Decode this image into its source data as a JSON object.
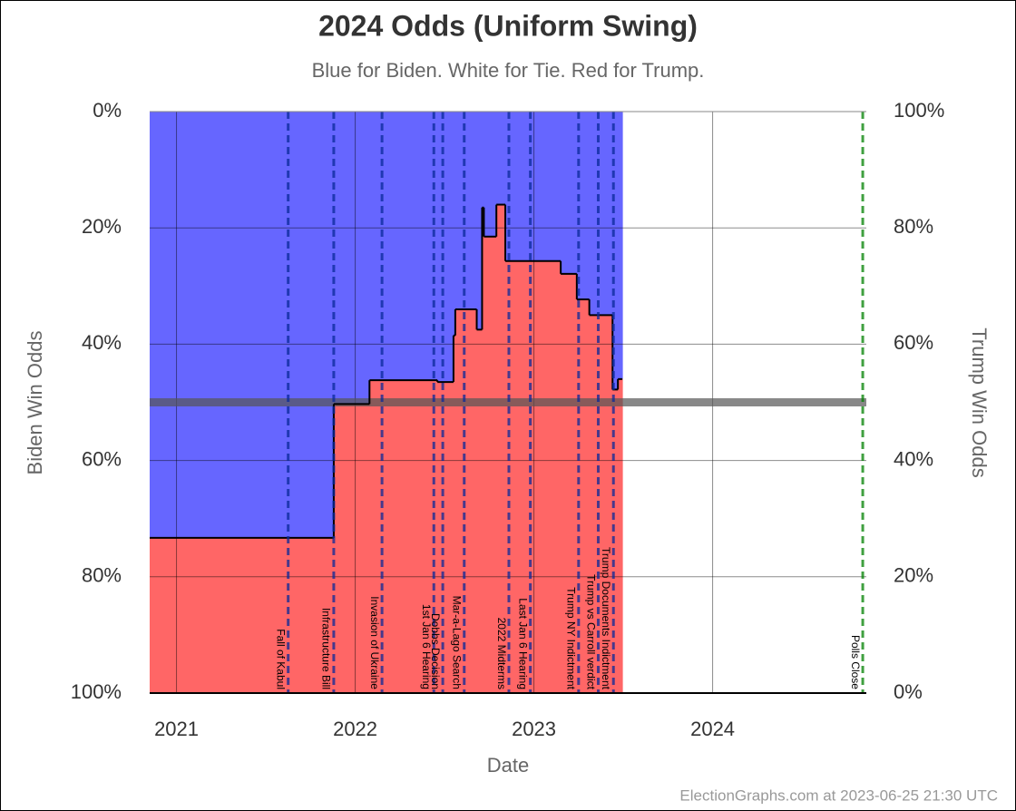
{
  "chart_data": {
    "type": "step-area",
    "title": "2024 Odds (Uniform Swing)",
    "subtitle": "Blue for Biden. White for Tie. Red for Trump.",
    "x_label": "Date",
    "y_label": "Biden Win Odds",
    "y2_label": "Trump Win Odds",
    "footer": "ElectionGraphs.com at 2023-06-25 21:30 UTC",
    "x": [
      2020.85,
      2021.88,
      2022.08,
      2022.46,
      2022.55,
      2022.56,
      2022.68,
      2022.71,
      2022.72,
      2022.79,
      2022.84,
      2023.15,
      2023.24,
      2023.31,
      2023.44,
      2023.47,
      2023.49
    ],
    "values": [
      73.3,
      50.3,
      46.2,
      46.5,
      38.5,
      34,
      37.5,
      16.5,
      21.5,
      16,
      25.7,
      27.9,
      32.3,
      35,
      47.8,
      46,
      46
    ],
    "above_color": "#6666ff",
    "below_color": "#ff6666",
    "line_color": "#000000",
    "reference_line": 50,
    "xlim": [
      2020.85,
      2024.86
    ],
    "xticks": [
      2021,
      2022,
      2023,
      2024
    ],
    "ylim": [
      100,
      0
    ],
    "yticks": [
      {
        "value": 0,
        "label": "0%"
      },
      {
        "value": 20,
        "label": "20%"
      },
      {
        "value": 40,
        "label": "40%"
      },
      {
        "value": 60,
        "label": "60%"
      },
      {
        "value": 80,
        "label": "80%"
      },
      {
        "value": 100,
        "label": "100%"
      }
    ],
    "y2lim": [
      0,
      100
    ],
    "y2ticks": [
      {
        "value": 100,
        "label": "100%"
      },
      {
        "value": 80,
        "label": "80%"
      },
      {
        "value": 60,
        "label": "60%"
      },
      {
        "value": 40,
        "label": "40%"
      },
      {
        "value": 20,
        "label": "20%"
      },
      {
        "value": 0,
        "label": "0%"
      }
    ],
    "grid": true,
    "events": [
      {
        "label": "Fall of Kabul",
        "x": 2021.625,
        "color": "#0a2a9a"
      },
      {
        "label": "Infrastructure Bill",
        "x": 2021.88,
        "color": "#0a2a9a"
      },
      {
        "label": "Invasion of Ukraine",
        "x": 2022.15,
        "color": "#0a2a9a"
      },
      {
        "label": "1st Jan 6 Hearing",
        "x": 2022.44,
        "color": "#0a2a9a"
      },
      {
        "label": "Dobbs Decision",
        "x": 2022.49,
        "color": "#0a2a9a"
      },
      {
        "label": "Mar-a-Lago Search",
        "x": 2022.61,
        "color": "#0a2a9a"
      },
      {
        "label": "2022 Midterms",
        "x": 2022.86,
        "color": "#0a2a9a"
      },
      {
        "label": "Last Jan 6 Hearing",
        "x": 2022.98,
        "color": "#0a2a9a"
      },
      {
        "label": "Trump NY Indictment",
        "x": 2023.25,
        "color": "#0a2a9a"
      },
      {
        "label": "Trump vs Carroll verdict",
        "x": 2023.36,
        "color": "#0a2a9a"
      },
      {
        "label": "Trump Documents Indictment",
        "x": 2023.445,
        "color": "#0a2a9a"
      },
      {
        "label": "Polls Close",
        "x": 2024.84,
        "color": "#008000"
      }
    ]
  }
}
